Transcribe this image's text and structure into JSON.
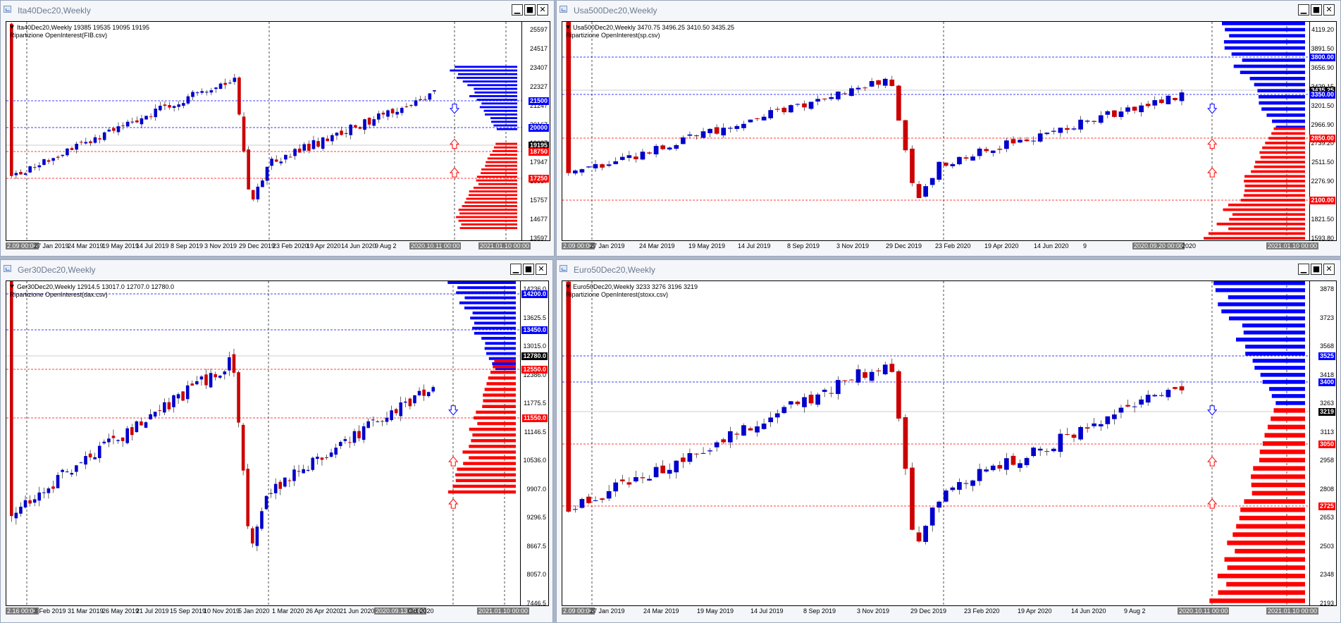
{
  "windows": [
    {
      "id": "ita",
      "title": "Ita40Dec20,Weekly",
      "info_line": "Ita40Dec20,Weekly  19385 19535 19095 19195",
      "indicator": "Ripartizione OpenInterest(FIB.csv)",
      "price_ticks": [
        "25597",
        "24517",
        "23407",
        "22327",
        "21247",
        "20167",
        "19087",
        "17947",
        "16867",
        "15757",
        "14677",
        "13597"
      ],
      "price_badges": [
        {
          "text": "21500",
          "color": "#0000ff"
        },
        {
          "text": "20000",
          "color": "#0000ff"
        },
        {
          "text": "19195",
          "color": "#000000"
        },
        {
          "text": "18750",
          "color": "#ff0000"
        },
        {
          "text": "17250",
          "color": "#ff0000"
        }
      ],
      "time_labels": [
        "2.09 00:00",
        "27 Jan 2019",
        "24 Mar 2019",
        "19 May 2019",
        "14 Jul 2019",
        "8 Sep 2019",
        "3 Nov 2019",
        "29 Dec 2019",
        "23 Feb 2020",
        "19 Apr 2020",
        "14 Jun 2020",
        "9 Aug 2",
        "2020.10.11 00:00",
        "2021.01.10 00:00"
      ]
    },
    {
      "id": "usa",
      "title": "Usa500Dec20,Weekly",
      "info_line": "Usa500Dec20,Weekly  3470.75 3496.25 3410.50 3435.25",
      "indicator": "Ripartizione OpenInterest(sp.csv)",
      "price_ticks": [
        "4119.20",
        "3891.50",
        "3656.90",
        "3429.15",
        "3201.50",
        "2966.90",
        "2739.20",
        "2511.50",
        "2276.90",
        "2049.20",
        "1821.50",
        "1593.80"
      ],
      "price_badges": [
        {
          "text": "3800.00",
          "color": "#0000ff"
        },
        {
          "text": "3435.25",
          "color": "#000000"
        },
        {
          "text": "3350.00",
          "color": "#0000ff"
        },
        {
          "text": "2850.00",
          "color": "#ff0000"
        },
        {
          "text": "2100.00",
          "color": "#ff0000"
        }
      ],
      "time_labels": [
        "2.09 00:00",
        "27 Jan 2019",
        "24 Mar 2019",
        "19 May 2019",
        "14 Jul 2019",
        "8 Sep 2019",
        "3 Nov 2019",
        "29 Dec 2019",
        "23 Feb 2020",
        "19 Apr 2020",
        "14 Jun 2020",
        "9",
        "2020.09.20 00:00",
        "2020",
        "2021.01.10 00:00"
      ]
    },
    {
      "id": "ger",
      "title": "Ger30Dec20,Weekly",
      "info_line": "Ger30Dec20,Weekly  12914.5 13017.0 12707.0 12780.0",
      "indicator": "Ripartizione OpenInterest(dax.csv)",
      "price_ticks": [
        "14236.0",
        "13625.5",
        "13015.0",
        "12386.0",
        "11775.5",
        "11146.5",
        "10536.0",
        "9907.0",
        "9296.5",
        "8667.5",
        "8057.0",
        "7446.5"
      ],
      "price_badges": [
        {
          "text": "14200.0",
          "color": "#0000ff"
        },
        {
          "text": "13450.0",
          "color": "#0000ff"
        },
        {
          "text": "12780.0",
          "color": "#000000"
        },
        {
          "text": "12550.0",
          "color": "#ff0000"
        },
        {
          "text": "11550.0",
          "color": "#ff0000"
        }
      ],
      "time_labels": [
        "2.16 00:00",
        "3 Feb 2019",
        "31 Mar 2019",
        "26 May 2019",
        "21 Jul 2019",
        "15 Sep 2019",
        "10 Nov 2019",
        "5 Jan 2020",
        "1 Mar 2020",
        "26 Apr 2020",
        "21 Jun 2020",
        "2020.09.13 00:00",
        "Oct 2020",
        "2021.01.10 00:00"
      ]
    },
    {
      "id": "euro",
      "title": "Euro50Dec20,Weekly",
      "info_line": "Euro50Dec20,Weekly  3233 3276 3196 3219",
      "indicator": "Ripartizione OpenInterest(stoxx.csv)",
      "price_ticks": [
        "3878",
        "3723",
        "3568",
        "3418",
        "3263",
        "3113",
        "2958",
        "2808",
        "2653",
        "2503",
        "2348",
        "2193"
      ],
      "price_badges": [
        {
          "text": "3525",
          "color": "#0000ff"
        },
        {
          "text": "3400",
          "color": "#0000ff"
        },
        {
          "text": "3219",
          "color": "#000000"
        },
        {
          "text": "3050",
          "color": "#ff0000"
        },
        {
          "text": "2725",
          "color": "#ff0000"
        }
      ],
      "time_labels": [
        "2.09 00:00",
        "27 Jan 2019",
        "24 Mar 2019",
        "19 May 2019",
        "14 Jul 2019",
        "8 Sep 2019",
        "3 Nov 2019",
        "29 Dec 2019",
        "23 Feb 2020",
        "19 Apr 2020",
        "14 Jun 2020",
        "9 Aug 2",
        "2020.10.11 00:00",
        "2021.01.10 00:00"
      ]
    }
  ],
  "buttons": {
    "minimize": "▁",
    "maximize": "■",
    "close": "✕"
  },
  "colors": {
    "bull": "#0000cc",
    "bear": "#cc0000",
    "call_oi": "#0000ff",
    "put_oi": "#ff0000",
    "bg": "#ffffff"
  }
}
